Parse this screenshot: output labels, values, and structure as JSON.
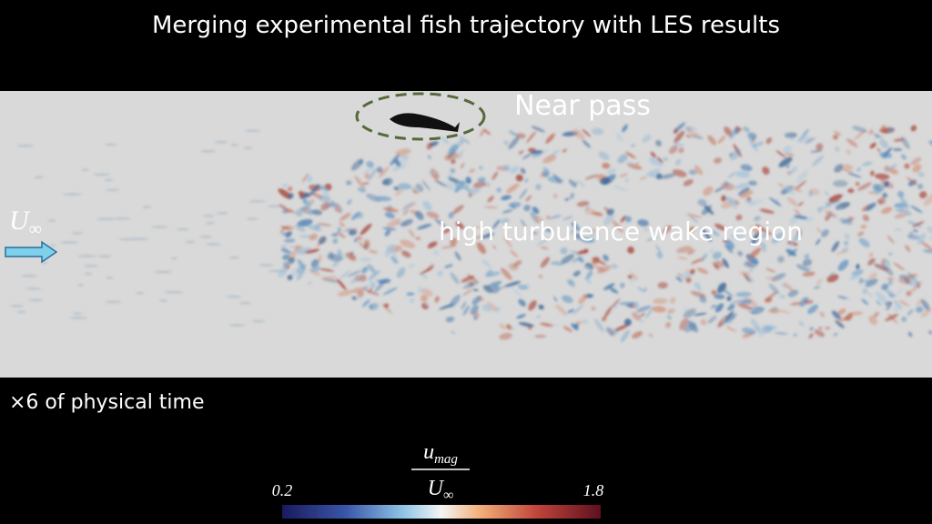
{
  "header": {
    "title": "Merging experimental fish trajectory with LES results"
  },
  "annotations": {
    "near_pass": "Near pass",
    "wake": "high turbulence wake region",
    "time_scale": "×6 of physical time"
  },
  "inflow_label": {
    "symbol": "U",
    "subscript": "∞"
  },
  "colorbar": {
    "numerator": "u",
    "numerator_subscript": "mag",
    "denominator": "U",
    "denominator_subscript": "∞",
    "min": 0.2,
    "max": 1.8
  }
}
